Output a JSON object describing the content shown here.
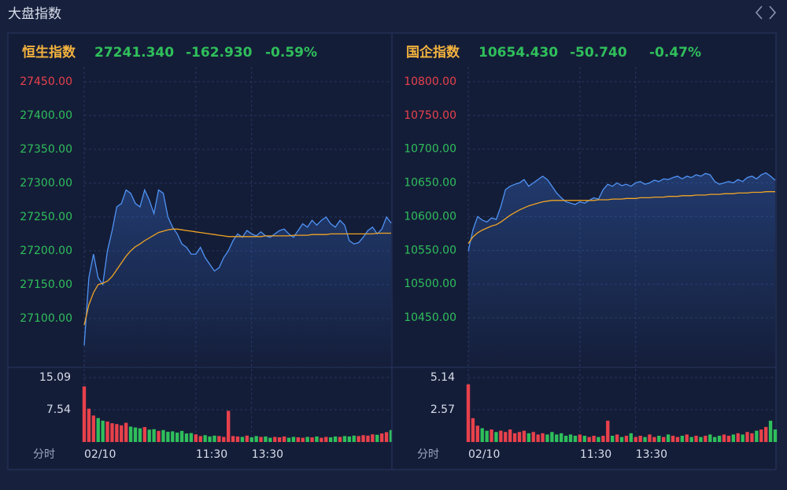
{
  "title": "大盘指数",
  "chart_data": [
    {
      "type": "line",
      "name": "恒生指数",
      "last": "27241.340",
      "change": "-162.930",
      "change_pct": "-0.59%",
      "x_label": "分时",
      "x": [
        0,
        5,
        10,
        15,
        20,
        25,
        30,
        35,
        40,
        45,
        50,
        55,
        60,
        65,
        70,
        75,
        80,
        85,
        90,
        95,
        100,
        105,
        110,
        115,
        120,
        125,
        130,
        135,
        140,
        145,
        150,
        155,
        160,
        165,
        170,
        175,
        180,
        185,
        190,
        195,
        200,
        205,
        210,
        215,
        220,
        225,
        230,
        235,
        240,
        245,
        250,
        255,
        260,
        265,
        270,
        275,
        280,
        285,
        290,
        295,
        300,
        305,
        310,
        315,
        320,
        325,
        330
      ],
      "xlim": [
        0,
        330
      ],
      "xticks": [
        {
          "value": 0,
          "label": "02/10"
        },
        {
          "value": 120,
          "label": "11:30"
        },
        {
          "value": 180,
          "label": "13:30"
        }
      ],
      "ylim": [
        27030,
        27472
      ],
      "yticks": [
        {
          "value": 27450,
          "label": "27450.00"
        },
        {
          "value": 27400,
          "label": "27400.00"
        },
        {
          "value": 27350,
          "label": "27350.00"
        },
        {
          "value": 27300,
          "label": "27300.00"
        },
        {
          "value": 27250,
          "label": "27250.00"
        },
        {
          "value": 27200,
          "label": "27200.00"
        },
        {
          "value": 27150,
          "label": "27150.00"
        },
        {
          "value": 27100,
          "label": "27100.00"
        }
      ],
      "ytick_colors": [
        "#e8414b",
        "#2fbf5b",
        "#2fbf5b",
        "#2fbf5b",
        "#2fbf5b",
        "#2fbf5b",
        "#2fbf5b",
        "#2fbf5b"
      ],
      "grid": true,
      "series": [
        {
          "color": "#4f93f5",
          "values": [
            27060,
            27160,
            27195,
            27160,
            27150,
            27200,
            27230,
            27265,
            27270,
            27290,
            27285,
            27270,
            27265,
            27290,
            27275,
            27255,
            27290,
            27285,
            27250,
            27235,
            27225,
            27210,
            27205,
            27195,
            27195,
            27205,
            27190,
            27180,
            27170,
            27175,
            27190,
            27200,
            27215,
            27225,
            27220,
            27230,
            27225,
            27222,
            27228,
            27222,
            27220,
            27225,
            27230,
            27232,
            27225,
            27220,
            27230,
            27240,
            27235,
            27245,
            27238,
            27245,
            27250,
            27240,
            27235,
            27245,
            27238,
            27215,
            27210,
            27212,
            27220,
            27230,
            27235,
            27225,
            27232,
            27250,
            27241
          ]
        },
        {
          "color": "#f0a424",
          "values": [
            27090,
            27120,
            27138,
            27150,
            27152,
            27155,
            27162,
            27172,
            27182,
            27192,
            27200,
            27206,
            27210,
            27215,
            27219,
            27223,
            27227,
            27229,
            27231,
            27232,
            27232,
            27231,
            27230,
            27229,
            27228,
            27227,
            27226,
            27225,
            27224,
            27223,
            27222,
            27221,
            27221,
            27221,
            27221,
            27221,
            27221,
            27221,
            27221,
            27222,
            27222,
            27222,
            27222,
            27222,
            27222,
            27223,
            27223,
            27223,
            27223,
            27224,
            27224,
            27224,
            27224,
            27225,
            27225,
            27225,
            27225,
            27225,
            27225,
            27225,
            27225,
            27225,
            27225,
            27226,
            27226,
            27226,
            27226
          ]
        }
      ],
      "volume": {
        "ylim": [
          0,
          15.09
        ],
        "yticks": [
          15.09,
          7.54
        ],
        "up_color": "#e8414b",
        "down_color": "#2fbf5b",
        "values": [
          13.0,
          7.8,
          6.2,
          5.6,
          5.0,
          4.8,
          4.4,
          4.2,
          3.9,
          4.5,
          3.6,
          3.4,
          3.2,
          3.5,
          2.9,
          3.0,
          2.6,
          2.8,
          2.4,
          2.5,
          2.2,
          2.6,
          2.0,
          2.1,
          1.8,
          1.4,
          1.6,
          1.3,
          1.5,
          1.4,
          1.2,
          7.3,
          1.4,
          1.3,
          1.2,
          1.5,
          1.1,
          1.4,
          1.2,
          1.3,
          1.0,
          1.2,
          1.1,
          1.3,
          1.0,
          1.2,
          1.1,
          1.0,
          1.2,
          1.1,
          1.3,
          1.0,
          1.2,
          1.1,
          1.3,
          1.2,
          1.4,
          1.3,
          1.5,
          1.4,
          1.6,
          1.5,
          1.8,
          1.7,
          2.0,
          2.3,
          2.8
        ]
      }
    },
    {
      "type": "line",
      "name": "国企指数",
      "last": "10654.430",
      "change": "-50.740",
      "change_pct": "-0.47%",
      "x_label": "分时",
      "x": [
        0,
        5,
        10,
        15,
        20,
        25,
        30,
        35,
        40,
        45,
        50,
        55,
        60,
        65,
        70,
        75,
        80,
        85,
        90,
        95,
        100,
        105,
        110,
        115,
        120,
        125,
        130,
        135,
        140,
        145,
        150,
        155,
        160,
        165,
        170,
        175,
        180,
        185,
        190,
        195,
        200,
        205,
        210,
        215,
        220,
        225,
        230,
        235,
        240,
        245,
        250,
        255,
        260,
        265,
        270,
        275,
        280,
        285,
        290,
        295,
        300,
        305,
        310,
        315,
        320,
        325,
        330
      ],
      "xlim": [
        0,
        330
      ],
      "xticks": [
        {
          "value": 0,
          "label": "02/10"
        },
        {
          "value": 120,
          "label": "11:30"
        },
        {
          "value": 180,
          "label": "13:30"
        }
      ],
      "ylim": [
        10379,
        10822
      ],
      "yticks": [
        {
          "value": 10800,
          "label": "10800.00"
        },
        {
          "value": 10750,
          "label": "10750.00"
        },
        {
          "value": 10700,
          "label": "10700.00"
        },
        {
          "value": 10650,
          "label": "10650.00"
        },
        {
          "value": 10600,
          "label": "10600.00"
        },
        {
          "value": 10550,
          "label": "10550.00"
        },
        {
          "value": 10500,
          "label": "10500.00"
        },
        {
          "value": 10450,
          "label": "10450.00"
        }
      ],
      "ytick_colors": [
        "#e8414b",
        "#e8414b",
        "#2fbf5b",
        "#2fbf5b",
        "#2fbf5b",
        "#2fbf5b",
        "#2fbf5b",
        "#2fbf5b"
      ],
      "grid": true,
      "series": [
        {
          "color": "#4f93f5",
          "values": [
            10549,
            10580,
            10600,
            10595,
            10592,
            10598,
            10596,
            10615,
            10640,
            10645,
            10648,
            10650,
            10655,
            10645,
            10650,
            10655,
            10660,
            10655,
            10645,
            10635,
            10628,
            10622,
            10620,
            10618,
            10622,
            10620,
            10624,
            10628,
            10626,
            10640,
            10648,
            10645,
            10650,
            10646,
            10648,
            10645,
            10650,
            10652,
            10648,
            10650,
            10654,
            10652,
            10656,
            10655,
            10658,
            10660,
            10656,
            10660,
            10658,
            10662,
            10660,
            10664,
            10662,
            10652,
            10648,
            10650,
            10652,
            10650,
            10655,
            10652,
            10658,
            10660,
            10656,
            10662,
            10665,
            10660,
            10654
          ]
        },
        {
          "color": "#f0a424",
          "values": [
            10560,
            10570,
            10576,
            10580,
            10583,
            10586,
            10588,
            10592,
            10597,
            10602,
            10606,
            10610,
            10613,
            10616,
            10618,
            10620,
            10622,
            10623,
            10624,
            10624,
            10624,
            10624,
            10624,
            10624,
            10624,
            10624,
            10624,
            10624,
            10625,
            10625,
            10625,
            10626,
            10626,
            10626,
            10627,
            10627,
            10627,
            10628,
            10628,
            10628,
            10629,
            10629,
            10629,
            10630,
            10630,
            10630,
            10631,
            10631,
            10631,
            10632,
            10632,
            10632,
            10633,
            10633,
            10633,
            10634,
            10634,
            10634,
            10635,
            10635,
            10635,
            10636,
            10636,
            10636,
            10637,
            10637,
            10637
          ]
        }
      ],
      "volume": {
        "ylim": [
          0,
          5.14
        ],
        "yticks": [
          5.14,
          2.57
        ],
        "up_color": "#e8414b",
        "down_color": "#2fbf5b",
        "values": [
          4.6,
          1.9,
          1.3,
          1.1,
          0.9,
          1.0,
          0.8,
          0.9,
          0.8,
          1.0,
          0.7,
          0.8,
          0.9,
          0.7,
          0.8,
          0.6,
          0.7,
          0.6,
          0.8,
          0.6,
          0.7,
          0.5,
          0.6,
          0.5,
          0.6,
          0.5,
          0.4,
          0.5,
          0.4,
          0.5,
          1.7,
          0.5,
          0.6,
          0.4,
          0.5,
          0.7,
          0.4,
          0.5,
          0.4,
          0.6,
          0.4,
          0.5,
          0.4,
          0.6,
          0.5,
          0.4,
          0.5,
          0.6,
          0.4,
          0.5,
          0.4,
          0.5,
          0.6,
          0.4,
          0.5,
          0.6,
          0.5,
          0.6,
          0.7,
          0.6,
          0.8,
          0.7,
          0.9,
          1.0,
          1.2,
          1.7,
          1.0
        ]
      }
    }
  ]
}
